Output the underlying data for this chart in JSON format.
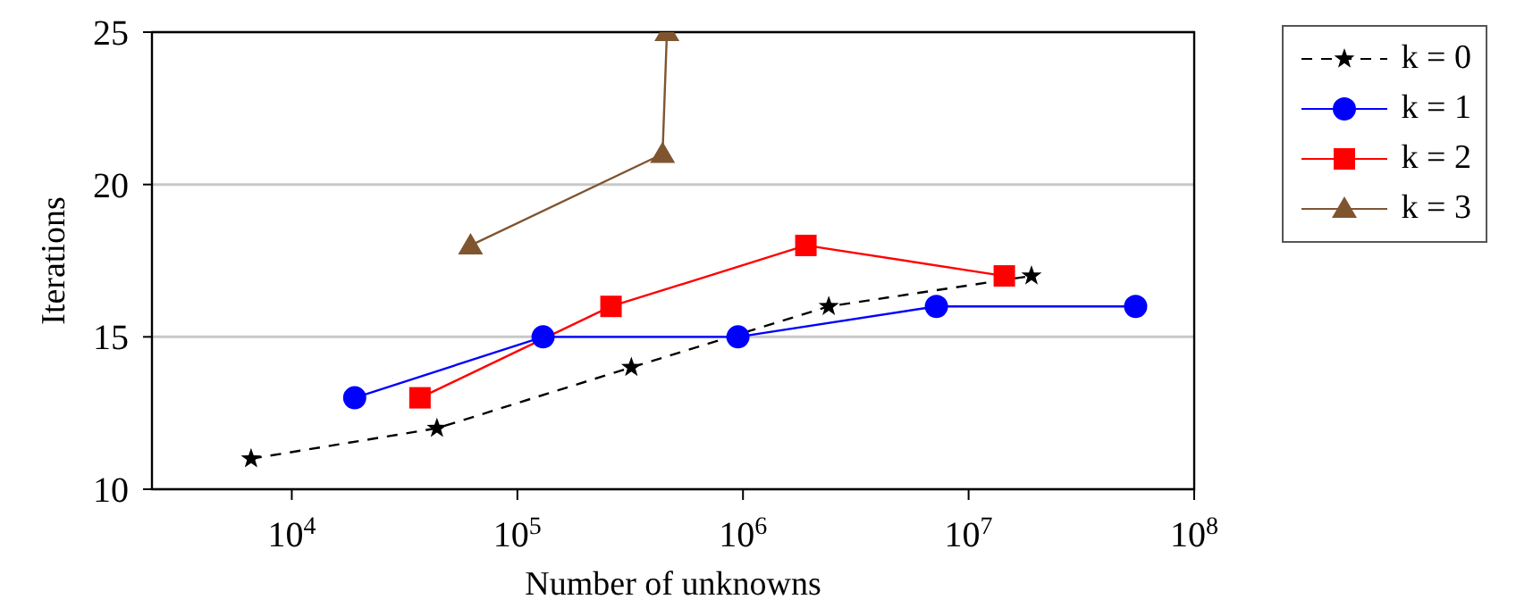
{
  "chart_data": {
    "type": "line",
    "xlabel": "Number of unknowns",
    "ylabel": "Iterations",
    "log": "x",
    "xlim": [
      2400,
      100000000
    ],
    "xticks": [
      {
        "value": 10000,
        "label": "10$^{4}$"
      },
      {
        "value": 100000,
        "label": "10$^{5}$"
      },
      {
        "value": 1000000,
        "label": "10$^{6}$"
      },
      {
        "value": 10000000,
        "label": "10$^{7}$"
      },
      {
        "value": 100000000,
        "label": "10$^{8}$"
      }
    ],
    "ylim": [
      10,
      25
    ],
    "yticks": [
      10,
      15,
      20,
      25
    ],
    "grid": "y",
    "legend": "right",
    "series": [
      {
        "name": "k = 0",
        "color": "#000000",
        "marker": "star",
        "line_style": "dashed",
        "x": [
          6600,
          44000,
          320000,
          2400000,
          19000000
        ],
        "values": [
          11,
          12,
          14,
          16,
          17
        ]
      },
      {
        "name": "k = 1",
        "color": "#0000ff",
        "marker": "circle",
        "line_style": "solid",
        "x": [
          19000,
          130000,
          950000,
          7200000,
          55000000
        ],
        "values": [
          13,
          15,
          15,
          16,
          16
        ]
      },
      {
        "name": "k = 2",
        "color": "#ff0000",
        "marker": "square",
        "line_style": "solid",
        "x": [
          37000,
          260000,
          1900000,
          14400000
        ],
        "values": [
          13,
          16,
          18,
          17
        ]
      },
      {
        "name": "k = 3",
        "color": "#7f5530",
        "marker": "triangle",
        "line_style": "solid",
        "x": [
          62000,
          440000,
          460000
        ],
        "values": [
          18,
          21,
          25
        ]
      }
    ]
  }
}
